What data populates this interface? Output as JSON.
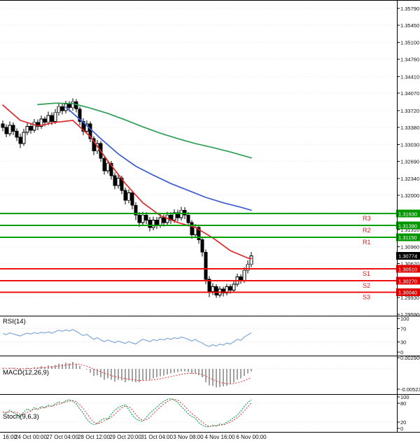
{
  "chart_data": {
    "type": "candlestick",
    "price_axis_ticks": [
      "1.35790",
      "1.35450",
      "1.35100",
      "1.34760",
      "1.34410",
      "1.34070",
      "1.33720",
      "1.33380",
      "1.33030",
      "1.32690",
      "1.32340",
      "1.32000",
      "1.31650",
      "1.31310",
      "1.30960",
      "1.30620",
      "1.30270",
      "1.29930",
      "1.29590"
    ],
    "time_labels": [
      {
        "text": "16:00",
        "index": 1
      },
      {
        "text": "24 Oct 00:00",
        "index": 8
      },
      {
        "text": "27 Oct 04:00",
        "index": 17
      },
      {
        "text": "28 Oct 12:00",
        "index": 26
      },
      {
        "text": "29 Oct 20:00",
        "index": 35
      },
      {
        "text": "31 Oct 04:00",
        "index": 44
      },
      {
        "text": "3 Nov 08:00",
        "index": 53
      },
      {
        "text": "4 Nov 16:00",
        "index": 62
      },
      {
        "text": "6 Nov 00:00",
        "index": 71
      }
    ],
    "candles": [
      [
        1.3345,
        1.3352,
        1.333,
        1.3338
      ],
      [
        1.3338,
        1.3344,
        1.3318,
        1.3325
      ],
      [
        1.3325,
        1.335,
        1.332,
        1.3342
      ],
      [
        1.3342,
        1.3348,
        1.3322,
        1.333
      ],
      [
        1.333,
        1.3336,
        1.331,
        1.3318
      ],
      [
        1.3318,
        1.3325,
        1.3296,
        1.3305
      ],
      [
        1.3305,
        1.3335,
        1.33,
        1.3328
      ],
      [
        1.3328,
        1.3348,
        1.3322,
        1.334
      ],
      [
        1.334,
        1.3347,
        1.3325,
        1.3332
      ],
      [
        1.3332,
        1.3355,
        1.3327,
        1.3348
      ],
      [
        1.3348,
        1.3354,
        1.3332,
        1.334
      ],
      [
        1.334,
        1.3362,
        1.3335,
        1.3355
      ],
      [
        1.3355,
        1.336,
        1.334,
        1.3348
      ],
      [
        1.3348,
        1.337,
        1.3342,
        1.3362
      ],
      [
        1.3362,
        1.3368,
        1.3343,
        1.335
      ],
      [
        1.335,
        1.3375,
        1.3345,
        1.3368
      ],
      [
        1.3368,
        1.3388,
        1.3362,
        1.338
      ],
      [
        1.338,
        1.3386,
        1.3364,
        1.3372
      ],
      [
        1.3372,
        1.3392,
        1.3366,
        1.3385
      ],
      [
        1.3385,
        1.3391,
        1.337,
        1.3378
      ],
      [
        1.3378,
        1.3397,
        1.3372,
        1.339
      ],
      [
        1.339,
        1.3395,
        1.3368,
        1.3375
      ],
      [
        1.3375,
        1.338,
        1.3342,
        1.335
      ],
      [
        1.335,
        1.3356,
        1.3322,
        1.333
      ],
      [
        1.333,
        1.3352,
        1.3324,
        1.3345
      ],
      [
        1.3345,
        1.335,
        1.3308,
        1.3315
      ],
      [
        1.3315,
        1.332,
        1.3282,
        1.329
      ],
      [
        1.329,
        1.3312,
        1.3284,
        1.3305
      ],
      [
        1.3305,
        1.331,
        1.3268,
        1.3275
      ],
      [
        1.3275,
        1.328,
        1.3242,
        1.325
      ],
      [
        1.325,
        1.3272,
        1.3244,
        1.3265
      ],
      [
        1.3265,
        1.327,
        1.3232,
        1.324
      ],
      [
        1.324,
        1.3246,
        1.3212,
        1.322
      ],
      [
        1.322,
        1.3242,
        1.3214,
        1.3235
      ],
      [
        1.3235,
        1.324,
        1.3202,
        1.321
      ],
      [
        1.321,
        1.3216,
        1.3182,
        1.319
      ],
      [
        1.319,
        1.3212,
        1.3184,
        1.3205
      ],
      [
        1.3205,
        1.321,
        1.3172,
        1.318
      ],
      [
        1.318,
        1.3186,
        1.315,
        1.316
      ],
      [
        1.316,
        1.3166,
        1.3136,
        1.3145
      ],
      [
        1.3145,
        1.3167,
        1.3139,
        1.316
      ],
      [
        1.316,
        1.3166,
        1.3142,
        1.315
      ],
      [
        1.315,
        1.3156,
        1.3127,
        1.3135
      ],
      [
        1.3135,
        1.3157,
        1.3129,
        1.315
      ],
      [
        1.315,
        1.3156,
        1.3132,
        1.314
      ],
      [
        1.314,
        1.3162,
        1.3134,
        1.3155
      ],
      [
        1.3155,
        1.3161,
        1.3137,
        1.3145
      ],
      [
        1.3145,
        1.3167,
        1.3139,
        1.316
      ],
      [
        1.316,
        1.3166,
        1.3142,
        1.315
      ],
      [
        1.315,
        1.3172,
        1.3144,
        1.3165
      ],
      [
        1.3165,
        1.3171,
        1.3147,
        1.3155
      ],
      [
        1.3155,
        1.3177,
        1.3149,
        1.317
      ],
      [
        1.317,
        1.3176,
        1.3152,
        1.316
      ],
      [
        1.316,
        1.3166,
        1.3137,
        1.3145
      ],
      [
        1.3145,
        1.315,
        1.3112,
        1.312
      ],
      [
        1.312,
        1.3142,
        1.3114,
        1.3135
      ],
      [
        1.3135,
        1.314,
        1.3102,
        1.311
      ],
      [
        1.311,
        1.3116,
        1.3076,
        1.3085
      ],
      [
        1.3085,
        1.309,
        1.302,
        1.303
      ],
      [
        1.303,
        1.3036,
        1.2994,
        1.3005
      ],
      [
        1.3005,
        1.3022,
        1.2998,
        1.3015
      ],
      [
        1.3015,
        1.302,
        1.2992,
        1.2998
      ],
      [
        1.2998,
        1.3016,
        1.2993,
        1.301
      ],
      [
        1.301,
        1.3015,
        1.2995,
        1.3002
      ],
      [
        1.3002,
        1.3021,
        1.2997,
        1.3015
      ],
      [
        1.3015,
        1.302,
        1.3001,
        1.3008
      ],
      [
        1.3008,
        1.3026,
        1.3003,
        1.302
      ],
      [
        1.302,
        1.3041,
        1.3015,
        1.3035
      ],
      [
        1.3035,
        1.304,
        1.3021,
        1.3028
      ],
      [
        1.3028,
        1.3054,
        1.3023,
        1.3048
      ],
      [
        1.3048,
        1.3068,
        1.3042,
        1.306
      ],
      [
        1.306,
        1.3085,
        1.3055,
        1.30774
      ]
    ],
    "moving_averages": [
      {
        "name": "ma-slow",
        "color": "#2e9e57",
        "points": [
          [
            10,
            1.3384
          ],
          [
            15,
            1.3387
          ],
          [
            20,
            1.3386
          ],
          [
            25,
            1.3377
          ],
          [
            30,
            1.3366
          ],
          [
            35,
            1.3353
          ],
          [
            40,
            1.3339
          ],
          [
            45,
            1.3326
          ],
          [
            50,
            1.3315
          ],
          [
            55,
            1.3305
          ],
          [
            60,
            1.3297
          ],
          [
            65,
            1.3288
          ],
          [
            71,
            1.3276
          ]
        ]
      },
      {
        "name": "ma-medium",
        "color": "#3b5cd0",
        "points": [
          [
            18,
            1.3379
          ],
          [
            23,
            1.3348
          ],
          [
            28,
            1.3315
          ],
          [
            33,
            1.3284
          ],
          [
            38,
            1.3259
          ],
          [
            43,
            1.3241
          ],
          [
            48,
            1.3224
          ],
          [
            53,
            1.321
          ],
          [
            58,
            1.3196
          ],
          [
            63,
            1.3185
          ],
          [
            68,
            1.3176
          ],
          [
            71,
            1.317
          ]
        ]
      },
      {
        "name": "ma-fast",
        "color": "#e02828",
        "points": [
          [
            0,
            1.3383
          ],
          [
            5,
            1.3352
          ],
          [
            10,
            1.3341
          ],
          [
            15,
            1.3348
          ],
          [
            20,
            1.3352
          ],
          [
            25,
            1.3319
          ],
          [
            30,
            1.327
          ],
          [
            35,
            1.3224
          ],
          [
            40,
            1.3185
          ],
          [
            45,
            1.3159
          ],
          [
            50,
            1.3145
          ],
          [
            55,
            1.3135
          ],
          [
            60,
            1.3114
          ],
          [
            65,
            1.3088
          ],
          [
            70,
            1.3073
          ],
          [
            71,
            1.3072
          ]
        ]
      }
    ],
    "levels": [
      {
        "label": "R3",
        "price": 1.3163,
        "tag": "1.31630",
        "line_color": "#00a000",
        "tag_color": "#009600"
      },
      {
        "label": "R2",
        "price": 1.3139,
        "tag": "1.31390",
        "line_color": "#00a000",
        "tag_color": "#009600"
      },
      {
        "label": "R1",
        "price": 1.3115,
        "tag": "1.31150",
        "line_color": "#00a000",
        "tag_color": "#009600"
      },
      {
        "label": "S1",
        "price": 1.3051,
        "tag": "1.30510",
        "line_color": "#ee1111",
        "tag_color": "#e00000"
      },
      {
        "label": "S2",
        "price": 1.3027,
        "tag": "1.30270",
        "line_color": "#ee1111",
        "tag_color": "#e00000"
      },
      {
        "label": "S3",
        "price": 1.3004,
        "tag": "1.30040",
        "line_color": "#ee1111",
        "tag_color": "#e00000"
      }
    ],
    "current_price": {
      "value": "1.30774",
      "price": 1.30774,
      "tag_color": "#000000"
    },
    "indicators": {
      "rsi": {
        "label": "RSI(14)",
        "range": [
          0,
          100
        ],
        "guide_levels": [
          70,
          30
        ],
        "scale_ticks": [
          {
            "text": "100",
            "value": 100
          },
          {
            "text": "70",
            "value": 70
          },
          {
            "text": "30",
            "value": 30
          },
          {
            "text": "0",
            "value": 0
          }
        ],
        "values": [
          55,
          52,
          57,
          54,
          51,
          48,
          53,
          56,
          54,
          58,
          55,
          59,
          57,
          60,
          56,
          61,
          65,
          62,
          66,
          63,
          67,
          62,
          55,
          49,
          53,
          45,
          38,
          43,
          36,
          31,
          36,
          32,
          28,
          33,
          29,
          26,
          31,
          27,
          24,
          32,
          38,
          35,
          31,
          37,
          34,
          39,
          36,
          41,
          38,
          43,
          40,
          45,
          42,
          38,
          33,
          38,
          31,
          27,
          20,
          17,
          22,
          18,
          24,
          21,
          27,
          24,
          31,
          38,
          35,
          45,
          51,
          57
        ]
      },
      "macd": {
        "label": "MACD(12,26,9)",
        "range": [
          -0.005233,
          0.002909
        ],
        "scale_ticks": [
          {
            "text": "0.002909",
            "value": 0.002909
          },
          {
            "text": "-0.005233",
            "value": -0.005233
          }
        ],
        "values": [
          0.0002,
          0.0,
          0.0003,
          0.0002,
          -0.0001,
          -0.0003,
          0.0,
          0.0003,
          0.0002,
          0.0005,
          0.0004,
          0.0007,
          0.0006,
          0.0009,
          0.0007,
          0.001,
          0.0014,
          0.0013,
          0.0016,
          0.0015,
          0.0018,
          0.0014,
          0.0008,
          0.0,
          -0.0002,
          -0.001,
          -0.0018,
          -0.0016,
          -0.0022,
          -0.0028,
          -0.0024,
          -0.0028,
          -0.0032,
          -0.0028,
          -0.003,
          -0.0034,
          -0.003,
          -0.0032,
          -0.0034,
          -0.0034,
          -0.003,
          -0.0028,
          -0.0028,
          -0.0024,
          -0.0022,
          -0.0019,
          -0.0017,
          -0.0014,
          -0.0012,
          -0.001,
          -0.0008,
          -0.0006,
          -0.0006,
          -0.0008,
          -0.0012,
          -0.0012,
          -0.0016,
          -0.0022,
          -0.0034,
          -0.0042,
          -0.0044,
          -0.0048,
          -0.0047,
          -0.0045,
          -0.0043,
          -0.004,
          -0.0035,
          -0.0028,
          -0.0024,
          -0.0018,
          -0.0012,
          -0.0006
        ]
      },
      "stoch": {
        "label": "Stoch(9,6,3)",
        "range": [
          0,
          100
        ],
        "guide_levels": [
          80,
          20
        ],
        "scale_ticks": [
          {
            "text": "100",
            "value": 100
          },
          {
            "text": "80",
            "value": 80
          },
          {
            "text": "20",
            "value": 20
          },
          {
            "text": "0",
            "value": 0
          }
        ],
        "values": [
          52,
          48,
          58,
          50,
          44,
          38,
          52,
          62,
          55,
          66,
          60,
          70,
          66,
          74,
          70,
          78,
          84,
          80,
          88,
          91,
          86,
          78,
          62,
          48,
          30,
          18,
          12,
          15,
          26,
          32,
          30,
          45,
          58,
          66,
          72,
          75,
          60,
          42,
          30,
          25,
          22,
          35,
          48,
          58,
          68,
          78,
          86,
          92,
          95,
          90,
          82,
          70,
          58,
          46,
          38,
          32,
          18,
          10,
          6,
          5,
          10,
          8,
          14,
          12,
          20,
          26,
          34,
          42,
          55,
          70,
          82,
          90
        ]
      }
    },
    "colors": {
      "background": "#ffffff",
      "bull_candle": "#ffffff",
      "bear_candle": "#000000",
      "candle_outline": "#000000",
      "rsi_line": "#7fa8d9",
      "macd_histogram": "#a2a2a2",
      "macd_signal": "#e04545",
      "stoch_main": "#00a050",
      "stoch_signal": "#e04040",
      "level_label": "#e01515",
      "axis_text": "#101010"
    }
  }
}
